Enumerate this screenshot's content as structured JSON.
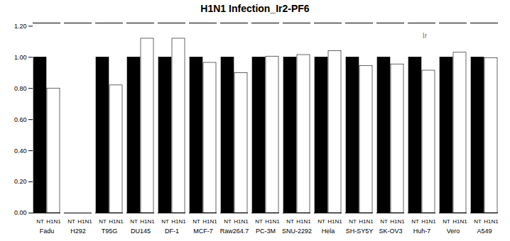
{
  "chart_data": {
    "type": "bar",
    "title": "H1N1 Infection_Ir2-PF6",
    "categories": [
      "Fadu",
      "H292",
      "T95G",
      "DU145",
      "DF-1",
      "MCF-7",
      "Raw264.7",
      "PC-3M",
      "SNU-2292",
      "Hela",
      "SH-SY5Y",
      "SK-OV3",
      "Huh-7",
      "Vero",
      "A549"
    ],
    "series": [
      {
        "name": "NT",
        "color": "#000000",
        "values": [
          1.0,
          0.0,
          1.0,
          1.0,
          1.0,
          1.0,
          1.0,
          1.0,
          1.0,
          1.0,
          1.0,
          1.0,
          1.0,
          1.0,
          1.0
        ]
      },
      {
        "name": "H1N1",
        "color": "#ffffff",
        "values": [
          0.8,
          0.0,
          0.82,
          1.12,
          1.12,
          0.965,
          0.9,
          1.005,
          1.015,
          1.04,
          0.945,
          0.955,
          0.915,
          1.03,
          0.995
        ]
      }
    ],
    "ylim": [
      0.0,
      1.22
    ],
    "yticks": [
      {
        "value": 0,
        "label": "0.00"
      },
      {
        "value": 0.2,
        "label": "0.20"
      },
      {
        "value": 0.4,
        "label": "0.40"
      },
      {
        "value": 0.6,
        "label": "0.60"
      },
      {
        "value": 0.8,
        "label": "0.80"
      },
      {
        "value": 1,
        "label": "1.00"
      },
      {
        "value": 1.2,
        "label": "1.20"
      }
    ],
    "annotations": [
      "Ir"
    ]
  }
}
